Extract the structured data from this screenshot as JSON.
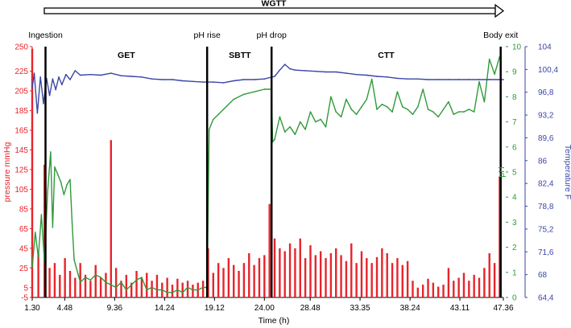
{
  "chart_data": {
    "type": "line",
    "title": "WGTT",
    "xlabel": "Time (h)",
    "x_range": [
      1.3,
      47.36
    ],
    "x_ticks": [
      1.3,
      4.48,
      9.36,
      14.24,
      19.12,
      24.0,
      28.48,
      33.35,
      38.24,
      43.11,
      47.36
    ],
    "x_tick_labels": [
      "1.30",
      "4.48",
      "9.36",
      "14.24",
      "19.12",
      "24.00",
      "28.48",
      "33.35",
      "38.24",
      "43.11",
      "47.36"
    ],
    "y_axes": {
      "pressure": {
        "label": "pressure mmHg",
        "color": "#e8242b",
        "range": [
          -5,
          250
        ],
        "ticks": [
          -5,
          5,
          25,
          45,
          65,
          85,
          105,
          125,
          145,
          165,
          185,
          205,
          225,
          250
        ],
        "tick_labels": [
          "-5",
          "5",
          "25",
          "45",
          "65",
          "85",
          "105",
          "125",
          "145",
          "165",
          "185",
          "205",
          "225",
          "250"
        ]
      },
      "ph": {
        "label": "pH",
        "color": "#2f9a3a",
        "range": [
          0,
          10
        ],
        "ticks": [
          0,
          1,
          2,
          3,
          4,
          5,
          6,
          7,
          8,
          9,
          10
        ],
        "tick_labels": [
          "0",
          "1",
          "2",
          "3",
          "4",
          "5",
          "6",
          "7",
          "8",
          "9",
          "10"
        ]
      },
      "temperature": {
        "label": "Temperature F",
        "color": "#3b46a8",
        "range": [
          64.4,
          104
        ],
        "ticks": [
          64.4,
          68,
          71.6,
          75.2,
          78.8,
          82.4,
          86,
          89.6,
          93.2,
          96.8,
          100.4,
          104
        ],
        "tick_labels": [
          "64,4",
          "68",
          "71,6",
          "75,2",
          "78,8",
          "82,4",
          "86",
          "89,6",
          "93,2",
          "96,8",
          "100,4",
          "104"
        ]
      }
    },
    "events": [
      {
        "name": "Ingestion",
        "x": 2.6
      },
      {
        "name": "pH rise",
        "x": 18.4
      },
      {
        "name": "pH drop",
        "x": 24.7
      },
      {
        "name": "Body exit",
        "x": 47.1
      }
    ],
    "segments": [
      {
        "name": "GET",
        "x": 10.5
      },
      {
        "name": "SBTT",
        "x": 21.6
      },
      {
        "name": "CTT",
        "x": 35.9
      }
    ],
    "series": [
      {
        "name": "Temperature",
        "axis": "temperature",
        "color": "#3b46a8",
        "x": [
          1.3,
          1.5,
          1.8,
          2.1,
          2.4,
          2.7,
          3.0,
          3.3,
          3.6,
          3.9,
          4.2,
          4.6,
          5.0,
          5.5,
          6.0,
          7.0,
          8.0,
          9.0,
          10.0,
          11.0,
          12.0,
          13.0,
          14.0,
          15.0,
          16.0,
          17.0,
          18.0,
          19.0,
          20.0,
          21.0,
          22.0,
          23.0,
          24.0,
          25.0,
          25.5,
          26.0,
          26.5,
          27.0,
          28.0,
          29.0,
          30.0,
          31.0,
          32.0,
          33.0,
          34.0,
          35.0,
          36.0,
          37.0,
          38.0,
          39.0,
          40.0,
          41.0,
          42.0,
          43.0,
          44.0,
          45.0,
          46.0,
          47.0,
          47.36
        ],
        "y": [
          97.5,
          99.8,
          93.5,
          99.2,
          95.0,
          99.0,
          96.3,
          98.9,
          97.2,
          99.2,
          98.0,
          99.6,
          98.8,
          100.2,
          99.5,
          99.6,
          99.5,
          99.8,
          99.4,
          99.3,
          99.2,
          98.9,
          98.8,
          98.8,
          98.6,
          98.5,
          98.4,
          98.4,
          98.3,
          98.6,
          98.8,
          98.8,
          98.9,
          99.3,
          100.3,
          101.2,
          100.5,
          100.3,
          100.2,
          100.1,
          100.0,
          100.0,
          99.8,
          99.6,
          99.5,
          99.3,
          99.2,
          99.0,
          98.9,
          98.9,
          98.8,
          98.8,
          98.8,
          98.8,
          98.8,
          98.8,
          98.8,
          98.8,
          98.8
        ]
      },
      {
        "name": "pH",
        "axis": "ph",
        "color": "#2f9a3a",
        "x": [
          1.3,
          1.6,
          1.9,
          2.2,
          2.5,
          2.8,
          3.1,
          3.3,
          3.5,
          3.8,
          4.1,
          4.4,
          4.7,
          5.0,
          5.2,
          5.4,
          5.6,
          5.8,
          6.0,
          6.5,
          7.0,
          7.5,
          8.0,
          8.5,
          9.0,
          9.5,
          10.0,
          10.5,
          11.0,
          11.5,
          12.0,
          12.5,
          13.0,
          13.5,
          14.0,
          14.5,
          15.0,
          15.5,
          16.0,
          16.5,
          17.0,
          17.5,
          18.0,
          18.4,
          18.6,
          19.0,
          19.5,
          20.0,
          21.0,
          22.0,
          23.0,
          24.0,
          24.7,
          24.8,
          25.0,
          25.5,
          26.0,
          26.5,
          27.0,
          27.5,
          28.0,
          28.5,
          29.0,
          29.5,
          30.0,
          30.5,
          31.0,
          31.5,
          32.0,
          32.5,
          33.0,
          33.5,
          34.0,
          34.5,
          35.0,
          35.5,
          36.0,
          36.5,
          37.0,
          37.5,
          38.0,
          38.5,
          39.0,
          39.5,
          40.0,
          40.5,
          41.0,
          41.5,
          42.0,
          42.5,
          43.0,
          43.5,
          44.0,
          44.5,
          45.0,
          45.5,
          46.0,
          46.5,
          47.0
        ],
        "y": [
          1.2,
          2.6,
          1.6,
          3.3,
          1.4,
          4.2,
          5.8,
          2.8,
          5.2,
          4.9,
          4.6,
          4.1,
          4.5,
          4.7,
          3.0,
          1.5,
          1.2,
          0.9,
          0.6,
          0.8,
          0.7,
          0.9,
          0.8,
          0.6,
          0.5,
          0.4,
          0.6,
          0.3,
          0.5,
          0.7,
          0.8,
          0.3,
          0.4,
          0.3,
          0.3,
          0.2,
          0.2,
          0.3,
          0.2,
          0.4,
          0.3,
          0.3,
          0.4,
          0.4,
          6.7,
          7.1,
          7.3,
          7.5,
          7.9,
          8.1,
          8.2,
          8.3,
          8.3,
          6.2,
          6.3,
          7.2,
          6.6,
          6.8,
          6.5,
          7.0,
          6.7,
          7.4,
          7.0,
          7.1,
          6.8,
          8.0,
          7.4,
          7.2,
          7.9,
          7.5,
          7.3,
          7.6,
          7.9,
          8.7,
          7.5,
          7.7,
          7.6,
          7.4,
          8.2,
          7.6,
          7.5,
          7.3,
          7.6,
          8.3,
          7.5,
          7.4,
          7.2,
          7.5,
          7.8,
          7.3,
          7.4,
          7.4,
          7.5,
          7.4,
          8.6,
          7.8,
          9.5,
          8.9,
          9.6
        ]
      },
      {
        "name": "Pressure",
        "axis": "pressure",
        "color": "#e8242b",
        "x": [
          1.3,
          1.9,
          2.5,
          3.0,
          3.5,
          4.0,
          4.5,
          5.0,
          5.5,
          6.0,
          6.5,
          7.0,
          7.5,
          8.0,
          8.5,
          9.0,
          9.5,
          10.0,
          10.5,
          11.0,
          11.5,
          12.0,
          12.5,
          13.0,
          13.5,
          14.0,
          14.5,
          15.0,
          15.5,
          16.0,
          16.5,
          17.0,
          17.5,
          18.0,
          18.5,
          19.0,
          19.5,
          20.0,
          20.5,
          21.0,
          21.5,
          22.0,
          22.5,
          23.0,
          23.5,
          24.0,
          24.5,
          25.0,
          25.5,
          26.0,
          26.5,
          27.0,
          27.5,
          28.0,
          28.5,
          29.0,
          29.5,
          30.0,
          30.5,
          31.0,
          31.5,
          32.0,
          32.5,
          33.0,
          33.5,
          34.0,
          34.5,
          35.0,
          35.5,
          36.0,
          36.5,
          37.0,
          37.5,
          38.0,
          38.5,
          39.0,
          39.5,
          40.0,
          40.5,
          41.0,
          41.5,
          42.0,
          42.5,
          43.0,
          43.5,
          44.0,
          44.5,
          45.0,
          45.5,
          46.0,
          46.5,
          47.0
        ],
        "y": [
          248,
          40,
          130,
          25,
          30,
          18,
          35,
          22,
          15,
          30,
          18,
          12,
          28,
          15,
          20,
          155,
          25,
          12,
          18,
          10,
          22,
          15,
          20,
          12,
          18,
          10,
          15,
          8,
          14,
          10,
          12,
          8,
          10,
          12,
          45,
          20,
          30,
          25,
          35,
          28,
          22,
          30,
          40,
          28,
          35,
          38,
          90,
          55,
          45,
          42,
          50,
          45,
          55,
          35,
          48,
          38,
          42,
          35,
          40,
          45,
          38,
          32,
          50,
          30,
          42,
          35,
          30,
          36,
          45,
          40,
          30,
          35,
          28,
          32,
          12,
          5,
          8,
          14,
          10,
          6,
          8,
          25,
          12,
          15,
          20,
          12,
          18,
          15,
          25,
          40,
          30,
          118
        ]
      }
    ]
  }
}
